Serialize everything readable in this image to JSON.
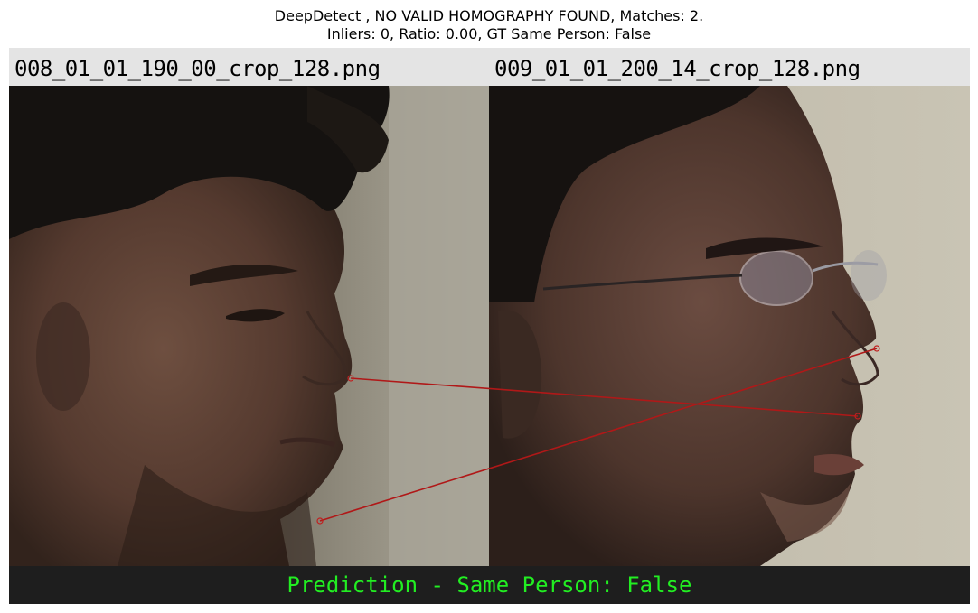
{
  "figure": {
    "title_line1": "DeepDetect , NO VALID HOMOGRAPHY FOUND, Matches: 2.",
    "title_line2": "Inliers: 0, Ratio: 0.00, GT Same Person: False"
  },
  "images": {
    "left": {
      "filename": "008_01_01_190_00_crop_128.png",
      "subject": "face profile facing right, dark hair"
    },
    "right": {
      "filename": "009_01_01_200_14_crop_128.png",
      "subject": "face profile facing right, wearing glasses"
    }
  },
  "matches": {
    "count": 2,
    "line_color": "#b01818"
  },
  "footer": {
    "prediction": "Prediction - Same Person: False",
    "prediction_color": "#22ee22",
    "background": "#1e1e1e"
  }
}
